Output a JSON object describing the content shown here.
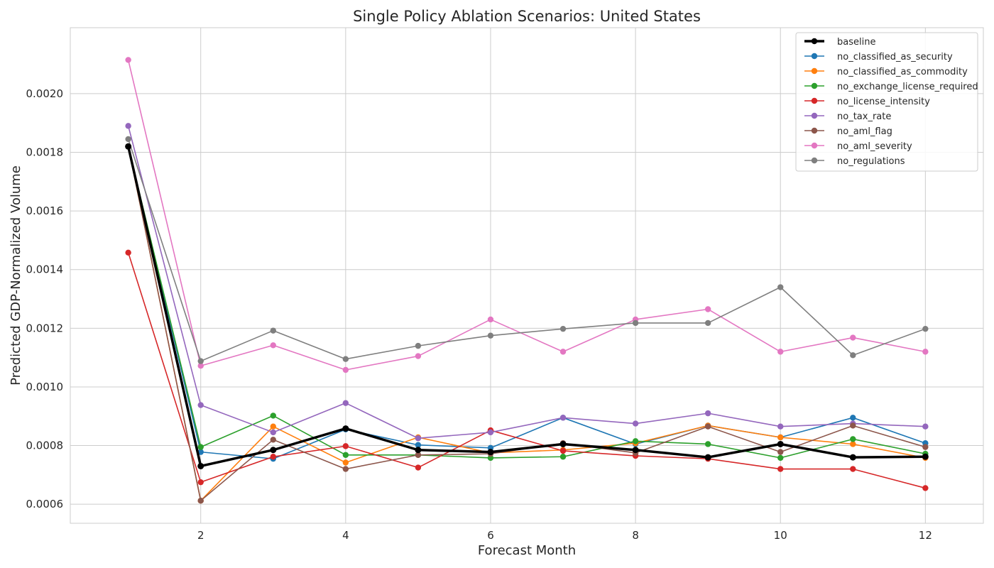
{
  "chart_data": {
    "type": "line",
    "title": "Single Policy Ablation Scenarios: United States",
    "xlabel": "Forecast Month",
    "ylabel": "Predicted GDP-Normalized Volume",
    "x": [
      1,
      2,
      3,
      4,
      5,
      6,
      7,
      8,
      9,
      10,
      11,
      12
    ],
    "xlim": [
      0.2,
      12.8
    ],
    "ylim": [
      0.000535,
      0.002225
    ],
    "xticks": [
      2,
      4,
      6,
      8,
      10,
      12
    ],
    "yticks": [
      0.0006,
      0.0008,
      0.001,
      0.0012,
      0.0014,
      0.0016,
      0.0018,
      0.002
    ],
    "ytick_labels": [
      "0.0006",
      "0.0008",
      "0.0010",
      "0.0012",
      "0.0014",
      "0.0016",
      "0.0018",
      "0.0020"
    ],
    "grid": true,
    "legend_position": "top-right",
    "series": [
      {
        "name": "no_classified_as_security",
        "color": "#1f77b4",
        "values": [
          0.00182,
          0.000778,
          0.000755,
          0.000855,
          0.000802,
          0.000792,
          0.000895,
          0.000805,
          0.000868,
          0.000828,
          0.000895,
          0.000808
        ]
      },
      {
        "name": "no_classified_as_commodity",
        "color": "#ff7f0e",
        "values": [
          0.00182,
          0.000612,
          0.000865,
          0.000742,
          0.000828,
          0.000775,
          0.000785,
          0.000808,
          0.000868,
          0.000828,
          0.000805,
          0.000758
        ]
      },
      {
        "name": "no_exchange_license_required",
        "color": "#2ca02c",
        "values": [
          0.00182,
          0.000795,
          0.000902,
          0.000768,
          0.000768,
          0.000758,
          0.000762,
          0.000815,
          0.000805,
          0.000758,
          0.000822,
          0.000772
        ]
      },
      {
        "name": "no_license_intensity",
        "color": "#d62728",
        "values": [
          0.001458,
          0.000675,
          0.000762,
          0.000798,
          0.000725,
          0.000852,
          0.000782,
          0.000765,
          0.000755,
          0.00072,
          0.00072,
          0.000655
        ]
      },
      {
        "name": "no_tax_rate",
        "color": "#9467bd",
        "values": [
          0.00189,
          0.000938,
          0.000845,
          0.000945,
          0.000825,
          0.000845,
          0.000895,
          0.000875,
          0.00091,
          0.000865,
          0.000875,
          0.000865
        ]
      },
      {
        "name": "no_aml_flag",
        "color": "#8c564b",
        "values": [
          0.00182,
          0.000612,
          0.00082,
          0.00072,
          0.000768,
          0.000772,
          0.000808,
          0.000775,
          0.000865,
          0.000778,
          0.000868,
          0.000795
        ]
      },
      {
        "name": "no_aml_severity",
        "color": "#e377c2",
        "values": [
          0.002115,
          0.001072,
          0.001142,
          0.001058,
          0.001105,
          0.00123,
          0.00112,
          0.00123,
          0.001265,
          0.00112,
          0.001168,
          0.00112
        ]
      },
      {
        "name": "no_regulations",
        "color": "#7f7f7f",
        "values": [
          0.001845,
          0.001088,
          0.001192,
          0.001095,
          0.00114,
          0.001175,
          0.001198,
          0.001218,
          0.001218,
          0.00134,
          0.001108,
          0.001198
        ]
      },
      {
        "name": "baseline",
        "color": "#000000",
        "values": [
          0.00182,
          0.00073,
          0.000785,
          0.000858,
          0.000785,
          0.000778,
          0.000805,
          0.000785,
          0.00076,
          0.000805,
          0.00076,
          0.000762
        ]
      }
    ],
    "legend_order": [
      "baseline",
      "no_classified_as_security",
      "no_classified_as_commodity",
      "no_exchange_license_required",
      "no_license_intensity",
      "no_tax_rate",
      "no_aml_flag",
      "no_aml_severity",
      "no_regulations"
    ]
  }
}
